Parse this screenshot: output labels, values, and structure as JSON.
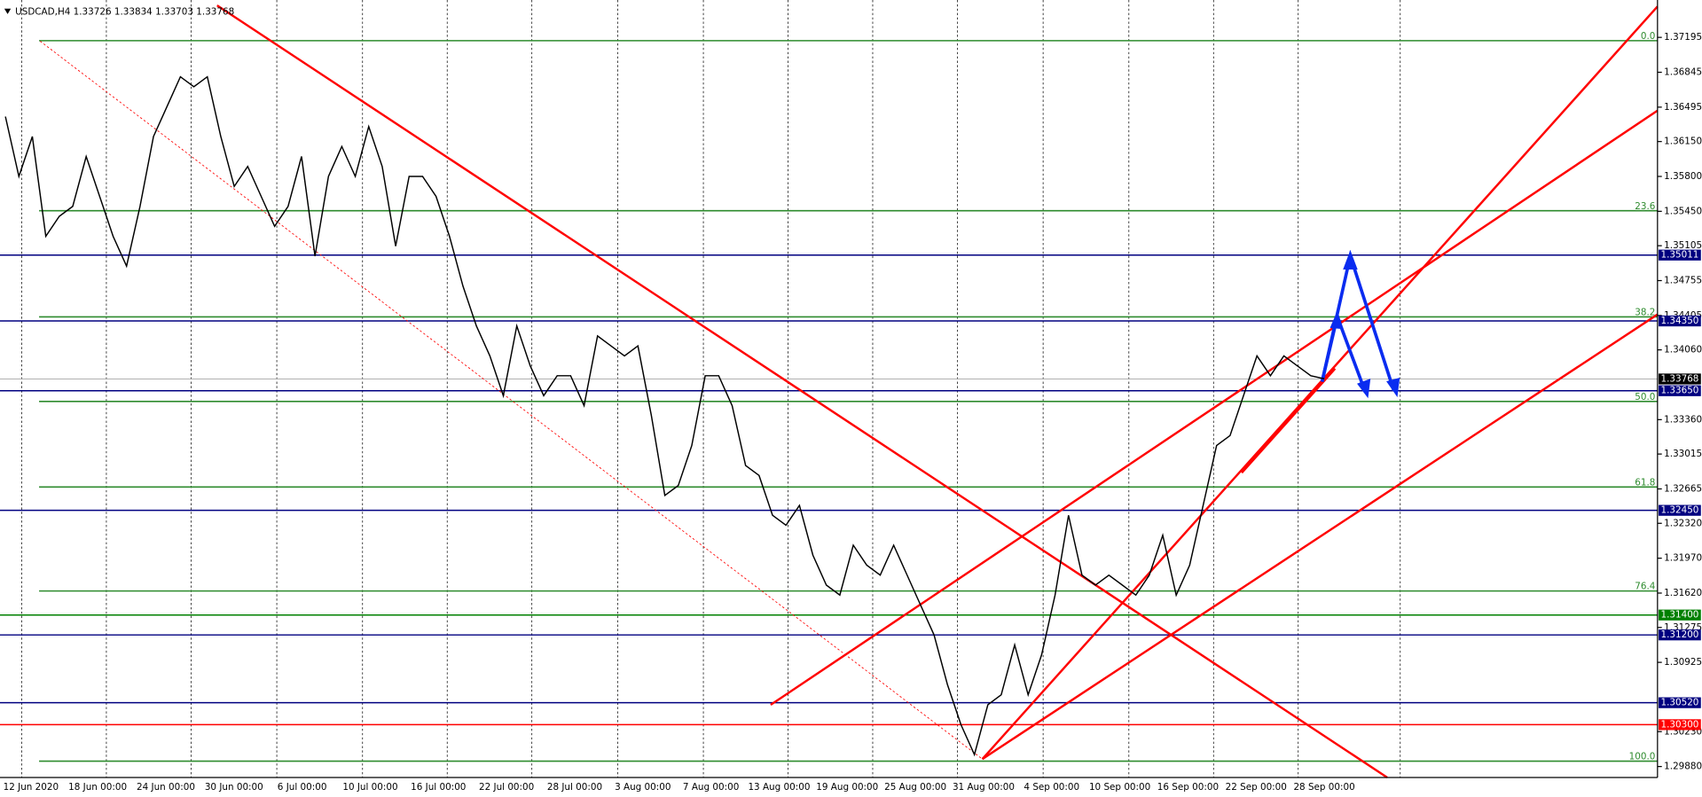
{
  "chart_data": {
    "type": "line",
    "title": "USDCAD,H4  1.33726 1.33834 1.33703 1.33768",
    "color": "#000000",
    "time_labels": [
      "12 Jun 2020",
      "18 Jun 00:00",
      "24 Jun 00:00",
      "30 Jun 00:00",
      "6 Jul 00:00",
      "10 Jul 00:00",
      "16 Jul 00:00",
      "22 Jul 00:00",
      "28 Jul 00:00",
      "3 Aug 00:00",
      "7 Aug 00:00",
      "13 Aug 00:00",
      "19 Aug 00:00",
      "25 Aug 00:00",
      "31 Aug 00:00",
      "4 Sep 00:00",
      "10 Sep 00:00",
      "16 Sep 00:00",
      "22 Sep 00:00",
      "28 Sep 00:00"
    ],
    "values": [
      1.364,
      1.358,
      1.362,
      1.352,
      1.354,
      1.355,
      1.36,
      1.356,
      1.352,
      1.349,
      1.355,
      1.362,
      1.365,
      1.368,
      1.367,
      1.368,
      1.362,
      1.357,
      1.359,
      1.356,
      1.353,
      1.355,
      1.36,
      1.35,
      1.358,
      1.361,
      1.358,
      1.363,
      1.359,
      1.351,
      1.358,
      1.358,
      1.356,
      1.352,
      1.347,
      1.343,
      1.34,
      1.336,
      1.343,
      1.339,
      1.336,
      1.338,
      1.338,
      1.335,
      1.342,
      1.341,
      1.34,
      1.341,
      1.334,
      1.326,
      1.327,
      1.331,
      1.338,
      1.338,
      1.335,
      1.329,
      1.328,
      1.324,
      1.323,
      1.325,
      1.32,
      1.317,
      1.316,
      1.321,
      1.319,
      1.318,
      1.321,
      1.318,
      1.315,
      1.312,
      1.307,
      1.303,
      1.3,
      1.305,
      1.306,
      1.311,
      1.306,
      1.31,
      1.316,
      1.324,
      1.318,
      1.317,
      1.318,
      1.317,
      1.316,
      1.318,
      1.322,
      1.316,
      1.319,
      1.325,
      1.331,
      1.332,
      1.336,
      1.34,
      1.338,
      1.34,
      1.339,
      1.338,
      1.3377
    ],
    "ylim": [
      1.2977,
      1.3757
    ],
    "yticks": [
      1.37195,
      1.36845,
      1.36495,
      {
        "value": 1.3615,
        "label": "1.36150"
      },
      {
        "value": 1.358,
        "label": "1.35800"
      },
      {
        "value": 1.3545,
        "label": "1.35450"
      },
      1.35105,
      1.34755,
      1.34405,
      {
        "value": 1.3406,
        "label": "1.34060"
      },
      {
        "value": 1.3336,
        "label": "1.33360"
      },
      1.33015,
      1.32665,
      {
        "value": 1.3232,
        "label": "1.32320"
      },
      {
        "value": 1.3197,
        "label": "1.31970"
      },
      {
        "value": 1.3162,
        "label": "1.31620"
      },
      1.31275,
      1.30925,
      {
        "value": 1.3023,
        "label": "1.30230"
      },
      {
        "value": 1.2988,
        "label": "1.29880"
      }
    ],
    "fib_levels": [
      {
        "value": 1.37162,
        "label": "0.0"
      },
      {
        "value": 1.35456,
        "label": "23.6"
      },
      {
        "value": 1.34391,
        "label": "38.2"
      },
      {
        "value": 1.33543,
        "label": "50.0"
      },
      {
        "value": 1.32684,
        "label": "61.8"
      },
      {
        "value": 1.31641,
        "label": "76.4"
      },
      {
        "value": 1.29934,
        "label": "100.0"
      }
    ],
    "fib_color": "#2e8b2e",
    "levels": [
      {
        "value": 1.35011,
        "color": "#000080"
      },
      {
        "value": 1.3435,
        "label": "1.34350",
        "color": "#000080"
      },
      {
        "value": 1.3365,
        "label": "1.33650",
        "color": "#000080"
      },
      {
        "value": 1.3245,
        "label": "1.32450",
        "color": "#000080"
      },
      {
        "value": 1.314,
        "label": "1.31400",
        "color": "#008000"
      },
      {
        "value": 1.312,
        "label": "1.31200",
        "color": "#000080"
      },
      {
        "value": 1.3052,
        "label": "1.30520",
        "color": "#000080"
      },
      {
        "value": 1.303,
        "label": "1.30300",
        "color": "#ff0000"
      }
    ],
    "current_price": 1.33768
  }
}
